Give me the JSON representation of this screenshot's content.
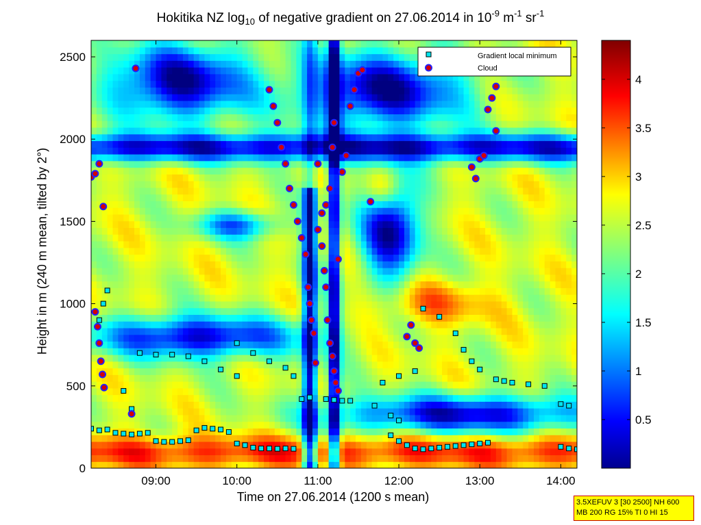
{
  "chart_data": {
    "type": "heatmap",
    "title": {
      "prefix": "Hokitika NZ log",
      "sub": "10",
      "middle": " of negative gradient on 27.06.2014 in 10",
      "sup1": "-9",
      "unit_mid": " m",
      "sup2": "-1",
      "unit_end": " sr",
      "sup3": "-1"
    },
    "xlabel": "Time on 27.06.2014 (1200 s mean)",
    "ylabel": "Height in m (240 m mean, tilted by 2°)",
    "x_range_hours": [
      8.2,
      14.2
    ],
    "y_range_m": [
      0,
      2600
    ],
    "x_ticks": [
      {
        "v": 9,
        "label": "09:00"
      },
      {
        "v": 10,
        "label": "10:00"
      },
      {
        "v": 11,
        "label": "11:00"
      },
      {
        "v": 12,
        "label": "12:00"
      },
      {
        "v": 13,
        "label": "13:00"
      },
      {
        "v": 14,
        "label": "14:00"
      }
    ],
    "y_ticks": [
      {
        "v": 0,
        "label": "0"
      },
      {
        "v": 500,
        "label": "500"
      },
      {
        "v": 1000,
        "label": "1000"
      },
      {
        "v": 1500,
        "label": "1500"
      },
      {
        "v": 2000,
        "label": "2000"
      },
      {
        "v": 2500,
        "label": "2500"
      }
    ],
    "colorbar": {
      "range": [
        0,
        4.4
      ],
      "ticks": [
        {
          "v": 0.5,
          "label": "0.5"
        },
        {
          "v": 1,
          "label": "1"
        },
        {
          "v": 1.5,
          "label": "1.5"
        },
        {
          "v": 2,
          "label": "2"
        },
        {
          "v": 2.5,
          "label": "2.5"
        },
        {
          "v": 3,
          "label": "3"
        },
        {
          "v": 3.5,
          "label": "3.5"
        },
        {
          "v": 4,
          "label": "4"
        }
      ]
    },
    "legend": {
      "placement": "top-right",
      "entries": [
        "Gradient local minimum",
        "Cloud"
      ]
    },
    "colors": {
      "minimum_marker": "#00e5ee",
      "cloud_marker": "#d40000",
      "cloud_edge": "#2222ff"
    },
    "series": [
      {
        "name": "Gradient local minimum",
        "points": [
          [
            8.2,
            240
          ],
          [
            8.3,
            230
          ],
          [
            8.4,
            235
          ],
          [
            8.5,
            215
          ],
          [
            8.6,
            210
          ],
          [
            8.7,
            205
          ],
          [
            8.8,
            210
          ],
          [
            8.9,
            215
          ],
          [
            9.0,
            165
          ],
          [
            9.1,
            160
          ],
          [
            9.2,
            160
          ],
          [
            9.3,
            165
          ],
          [
            9.4,
            170
          ],
          [
            9.5,
            230
          ],
          [
            9.6,
            245
          ],
          [
            9.7,
            240
          ],
          [
            9.8,
            235
          ],
          [
            9.9,
            220
          ],
          [
            10.0,
            150
          ],
          [
            10.1,
            140
          ],
          [
            10.2,
            125
          ],
          [
            10.3,
            120
          ],
          [
            10.4,
            120
          ],
          [
            10.5,
            118
          ],
          [
            10.6,
            120
          ],
          [
            10.7,
            118
          ],
          [
            11.1,
            420
          ],
          [
            11.2,
            415
          ],
          [
            11.3,
            410
          ],
          [
            11.4,
            410
          ],
          [
            11.9,
            200
          ],
          [
            12.0,
            165
          ],
          [
            12.1,
            140
          ],
          [
            12.2,
            120
          ],
          [
            12.3,
            115
          ],
          [
            12.4,
            120
          ],
          [
            12.5,
            125
          ],
          [
            12.6,
            130
          ],
          [
            12.7,
            135
          ],
          [
            12.8,
            140
          ],
          [
            12.9,
            145
          ],
          [
            13.0,
            150
          ],
          [
            13.1,
            155
          ],
          [
            14.0,
            130
          ],
          [
            14.1,
            120
          ],
          [
            14.2,
            115
          ],
          [
            8.4,
            1080
          ],
          [
            8.35,
            1000
          ],
          [
            8.3,
            900
          ],
          [
            8.8,
            700
          ],
          [
            9.0,
            690
          ],
          [
            9.2,
            690
          ],
          [
            9.4,
            680
          ],
          [
            9.6,
            650
          ],
          [
            9.8,
            600
          ],
          [
            10.0,
            560
          ],
          [
            10.0,
            760
          ],
          [
            10.2,
            700
          ],
          [
            10.4,
            650
          ],
          [
            10.6,
            610
          ],
          [
            10.7,
            560
          ],
          [
            12.3,
            970
          ],
          [
            12.5,
            920
          ],
          [
            12.7,
            820
          ],
          [
            12.8,
            720
          ],
          [
            12.9,
            650
          ],
          [
            13.0,
            600
          ],
          [
            12.2,
            590
          ],
          [
            12.0,
            560
          ],
          [
            11.8,
            520
          ],
          [
            8.6,
            470
          ],
          [
            8.7,
            360
          ],
          [
            10.8,
            420
          ],
          [
            10.9,
            430
          ],
          [
            13.2,
            540
          ],
          [
            13.3,
            530
          ],
          [
            13.4,
            520
          ],
          [
            13.6,
            510
          ],
          [
            13.8,
            500
          ],
          [
            14.0,
            390
          ],
          [
            14.1,
            380
          ],
          [
            11.7,
            380
          ],
          [
            11.9,
            320
          ],
          [
            12.0,
            290
          ]
        ]
      },
      {
        "name": "Cloud",
        "points": [
          [
            8.2,
            1770
          ],
          [
            8.25,
            1790
          ],
          [
            8.3,
            1850
          ],
          [
            8.35,
            1590
          ],
          [
            8.25,
            950
          ],
          [
            8.28,
            860
          ],
          [
            8.3,
            760
          ],
          [
            8.32,
            650
          ],
          [
            8.34,
            570
          ],
          [
            8.36,
            490
          ],
          [
            8.7,
            330
          ],
          [
            8.75,
            2430
          ],
          [
            10.4,
            2300
          ],
          [
            10.45,
            2200
          ],
          [
            10.5,
            2100
          ],
          [
            10.55,
            1950
          ],
          [
            10.6,
            1850
          ],
          [
            10.65,
            1700
          ],
          [
            10.7,
            1600
          ],
          [
            10.75,
            1500
          ],
          [
            10.8,
            1400
          ],
          [
            10.85,
            1300
          ],
          [
            10.88,
            1100
          ],
          [
            10.9,
            1000
          ],
          [
            10.92,
            900
          ],
          [
            10.95,
            820
          ],
          [
            10.97,
            640
          ],
          [
            11.0,
            1450
          ],
          [
            11.05,
            1550
          ],
          [
            11.1,
            1600
          ],
          [
            11.15,
            1700
          ],
          [
            11.18,
            1950
          ],
          [
            11.2,
            2100
          ],
          [
            11.05,
            1350
          ],
          [
            11.08,
            1200
          ],
          [
            11.1,
            1100
          ],
          [
            11.12,
            900
          ],
          [
            11.15,
            760
          ],
          [
            11.18,
            680
          ],
          [
            11.2,
            590
          ],
          [
            11.22,
            520
          ],
          [
            11.25,
            1270
          ],
          [
            11.3,
            1800
          ],
          [
            11.35,
            1900
          ],
          [
            11.4,
            2200
          ],
          [
            11.45,
            2300
          ],
          [
            11.5,
            2400
          ],
          [
            11.55,
            2420
          ],
          [
            11.0,
            1850
          ],
          [
            11.25,
            470
          ],
          [
            11.65,
            1620
          ],
          [
            12.1,
            800
          ],
          [
            12.15,
            870
          ],
          [
            12.2,
            760
          ],
          [
            12.25,
            730
          ],
          [
            12.9,
            1830
          ],
          [
            12.95,
            1760
          ],
          [
            13.0,
            1880
          ],
          [
            13.05,
            1900
          ],
          [
            13.1,
            2180
          ],
          [
            13.15,
            2250
          ],
          [
            13.2,
            2320
          ],
          [
            13.2,
            2050
          ]
        ]
      }
    ]
  },
  "info_box": {
    "line1": "3.5XEFUV 3 [30 2500] NH 600",
    "line2": "MB 200 RG 15% TI 0 HI 15"
  }
}
